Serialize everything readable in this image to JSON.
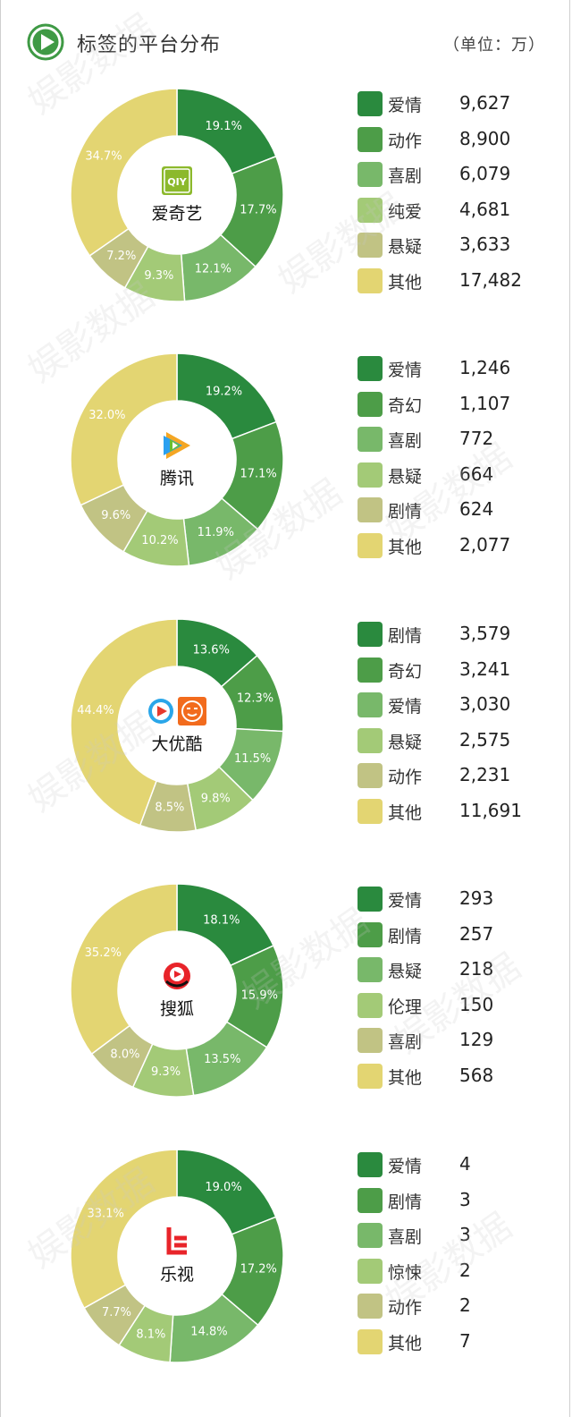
{
  "header": {
    "title": "标签的平台分布",
    "unit": "（单位：万）"
  },
  "watermark": "娱影数据",
  "colors": [
    "#2a8a3e",
    "#4d9d48",
    "#78b86a",
    "#a3ca77",
    "#c1c384",
    "#e3d572"
  ],
  "chart_data": [
    {
      "type": "pie",
      "donut": true,
      "platform": "爱奇艺",
      "logo": "iqiyi-logo",
      "categories": [
        "爱情",
        "动作",
        "喜剧",
        "纯爱",
        "悬疑",
        "其他"
      ],
      "values": [
        9627,
        8900,
        6079,
        4681,
        3633,
        17482
      ],
      "value_labels": [
        "9,627",
        "8,900",
        "6,079",
        "4,681",
        "3,633",
        "17,482"
      ],
      "percent_labels": [
        "19.1%",
        "17.7%",
        "12.1%",
        "9.3%",
        "7.2%",
        "34.7%"
      ]
    },
    {
      "type": "pie",
      "donut": true,
      "platform": "腾讯",
      "logo": "tencent-video-logo",
      "categories": [
        "爱情",
        "奇幻",
        "喜剧",
        "悬疑",
        "剧情",
        "其他"
      ],
      "values": [
        1246,
        1107,
        772,
        664,
        624,
        2077
      ],
      "value_labels": [
        "1,246",
        "1,107",
        "772",
        "664",
        "624",
        "2,077"
      ],
      "percent_labels": [
        "19.2%",
        "17.1%",
        "11.9%",
        "10.2%",
        "9.6%",
        "32.0%"
      ]
    },
    {
      "type": "pie",
      "donut": true,
      "platform": "大优酷",
      "logo": "youku-tudou-logo",
      "categories": [
        "剧情",
        "奇幻",
        "爱情",
        "悬疑",
        "动作",
        "其他"
      ],
      "values": [
        3579,
        3241,
        3030,
        2575,
        2231,
        11691
      ],
      "value_labels": [
        "3,579",
        "3,241",
        "3,030",
        "2,575",
        "2,231",
        "11,691"
      ],
      "percent_labels": [
        "13.6%",
        "12.3%",
        "11.5%",
        "9.8%",
        "8.5%",
        "44.4%"
      ]
    },
    {
      "type": "pie",
      "donut": true,
      "platform": "搜狐",
      "logo": "sohu-video-logo",
      "categories": [
        "爱情",
        "剧情",
        "悬疑",
        "伦理",
        "喜剧",
        "其他"
      ],
      "values": [
        293,
        257,
        218,
        150,
        129,
        568
      ],
      "value_labels": [
        "293",
        "257",
        "218",
        "150",
        "129",
        "568"
      ],
      "percent_labels": [
        "18.1%",
        "15.9%",
        "13.5%",
        "9.3%",
        "8.0%",
        "35.2%"
      ]
    },
    {
      "type": "pie",
      "donut": true,
      "platform": "乐视",
      "logo": "letv-logo",
      "categories": [
        "爱情",
        "剧情",
        "喜剧",
        "惊悚",
        "动作",
        "其他"
      ],
      "values": [
        4,
        3,
        3,
        2,
        2,
        7
      ],
      "value_labels": [
        "4",
        "3",
        "3",
        "2",
        "2",
        "7"
      ],
      "percent_labels": [
        "19.0%",
        "17.2%",
        "14.8%",
        "8.1%",
        "7.7%",
        "33.1%"
      ]
    }
  ]
}
